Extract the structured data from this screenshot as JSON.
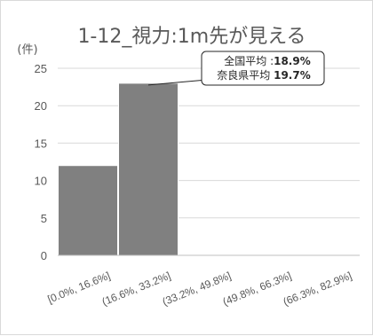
{
  "chart_data": {
    "type": "bar",
    "title": "1-12_視力:1m先が見える",
    "ylabel": "(件)",
    "xlabel": "",
    "categories": [
      "[0.0%, 16.6%]",
      "(16.6%, 33.2%]",
      "(33.2%, 49.8%]",
      "(49.8%, 66.3%]",
      "(66.3%, 82.9%]"
    ],
    "values": [
      12,
      23,
      0,
      0,
      0
    ],
    "ylim": [
      0,
      25
    ],
    "yticks": [
      0,
      5,
      10,
      15,
      20,
      25
    ],
    "grid": true,
    "bar_color": "#808080",
    "annotation": {
      "lines": [
        {
          "label": "全国平均 :",
          "value": "18.9%"
        },
        {
          "label": "奈良県平均 ",
          "value": "19.7%"
        }
      ],
      "points_to_category": 1
    }
  }
}
